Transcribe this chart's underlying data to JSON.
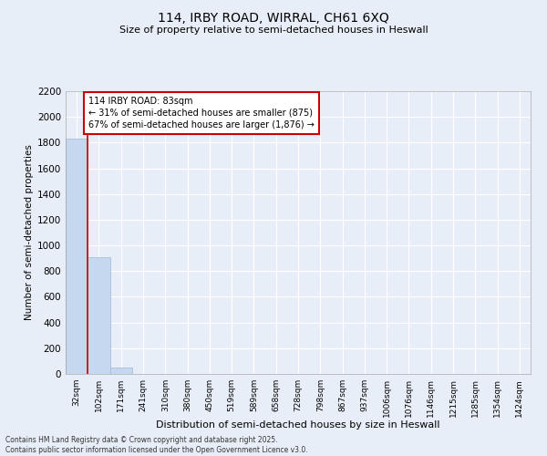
{
  "title1": "114, IRBY ROAD, WIRRAL, CH61 6XQ",
  "title2": "Size of property relative to semi-detached houses in Heswall",
  "xlabel": "Distribution of semi-detached houses by size in Heswall",
  "ylabel": "Number of semi-detached properties",
  "footer1": "Contains HM Land Registry data © Crown copyright and database right 2025.",
  "footer2": "Contains public sector information licensed under the Open Government Licence v3.0.",
  "annotation_line1": "114 IRBY ROAD: 83sqm",
  "annotation_line2": "← 31% of semi-detached houses are smaller (875)",
  "annotation_line3": "67% of semi-detached houses are larger (1,876) →",
  "property_size_sqm": 83,
  "categories": [
    "32sqm",
    "102sqm",
    "171sqm",
    "241sqm",
    "310sqm",
    "380sqm",
    "450sqm",
    "519sqm",
    "589sqm",
    "658sqm",
    "728sqm",
    "798sqm",
    "867sqm",
    "937sqm",
    "1006sqm",
    "1076sqm",
    "1146sqm",
    "1215sqm",
    "1285sqm",
    "1354sqm",
    "1424sqm"
  ],
  "values": [
    1830,
    910,
    50,
    0,
    0,
    0,
    0,
    0,
    0,
    0,
    0,
    0,
    0,
    0,
    0,
    0,
    0,
    0,
    0,
    0,
    0
  ],
  "bar_color": "#c5d8f0",
  "bar_edge_color": "#a0b8d8",
  "highlight_color": "#cc0000",
  "bg_color": "#e8eef8",
  "grid_color": "#ffffff",
  "ylim": [
    0,
    2200
  ],
  "yticks": [
    0,
    200,
    400,
    600,
    800,
    1000,
    1200,
    1400,
    1600,
    1800,
    2000,
    2200
  ],
  "annotation_box_color": "#ffffff",
  "annotation_box_edge": "#cc0000",
  "vline_x": 0.5
}
